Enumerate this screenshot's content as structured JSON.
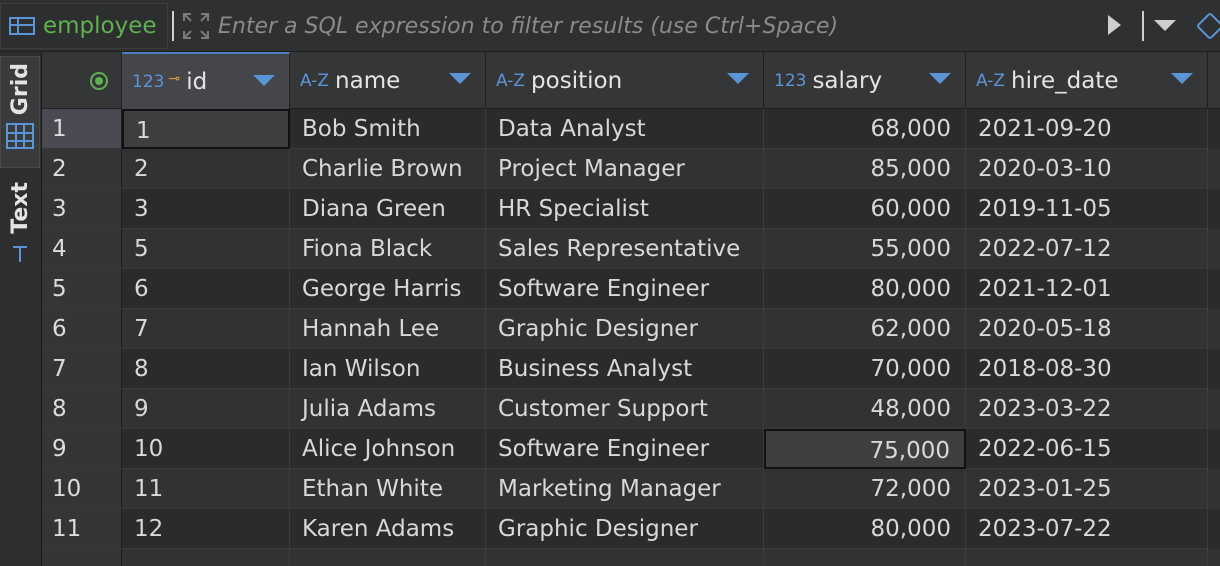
{
  "toolbar": {
    "table_name": "employee",
    "filter_placeholder": "Enter a SQL expression to filter results (use Ctrl+Space)"
  },
  "side_tabs": [
    {
      "label": "Grid"
    },
    {
      "label": "Text"
    }
  ],
  "columns": [
    {
      "name": "id",
      "type_badge": "123"
    },
    {
      "name": "name",
      "type_badge": "A-Z"
    },
    {
      "name": "position",
      "type_badge": "A-Z"
    },
    {
      "name": "salary",
      "type_badge": "123"
    },
    {
      "name": "hire_date",
      "type_badge": "A-Z"
    }
  ],
  "rows": [
    {
      "n": "1",
      "id": "1",
      "name": "Bob Smith",
      "position": "Data Analyst",
      "salary": "68,000",
      "hire_date": "2021-09-20"
    },
    {
      "n": "2",
      "id": "2",
      "name": "Charlie Brown",
      "position": "Project Manager",
      "salary": "85,000",
      "hire_date": "2020-03-10"
    },
    {
      "n": "3",
      "id": "3",
      "name": "Diana Green",
      "position": "HR Specialist",
      "salary": "60,000",
      "hire_date": "2019-11-05"
    },
    {
      "n": "4",
      "id": "5",
      "name": "Fiona Black",
      "position": "Sales Representative",
      "salary": "55,000",
      "hire_date": "2022-07-12"
    },
    {
      "n": "5",
      "id": "6",
      "name": "George Harris",
      "position": "Software Engineer",
      "salary": "80,000",
      "hire_date": "2021-12-01"
    },
    {
      "n": "6",
      "id": "7",
      "name": "Hannah Lee",
      "position": "Graphic Designer",
      "salary": "62,000",
      "hire_date": "2020-05-18"
    },
    {
      "n": "7",
      "id": "8",
      "name": "Ian Wilson",
      "position": "Business Analyst",
      "salary": "70,000",
      "hire_date": "2018-08-30"
    },
    {
      "n": "8",
      "id": "9",
      "name": "Julia Adams",
      "position": "Customer Support",
      "salary": "48,000",
      "hire_date": "2023-03-22"
    },
    {
      "n": "9",
      "id": "10",
      "name": "Alice Johnson",
      "position": "Software Engineer",
      "salary": "75,000",
      "hire_date": "2022-06-15"
    },
    {
      "n": "10",
      "id": "11",
      "name": "Ethan White",
      "position": "Marketing Manager",
      "salary": "72,000",
      "hire_date": "2023-01-25"
    },
    {
      "n": "11",
      "id": "12",
      "name": "Karen Adams",
      "position": "Graphic Designer",
      "salary": "80,000",
      "hire_date": "2023-07-22"
    }
  ],
  "colors": {
    "accent": "#5c95d6",
    "table_name": "#5fb04e",
    "key": "#e0a040"
  }
}
